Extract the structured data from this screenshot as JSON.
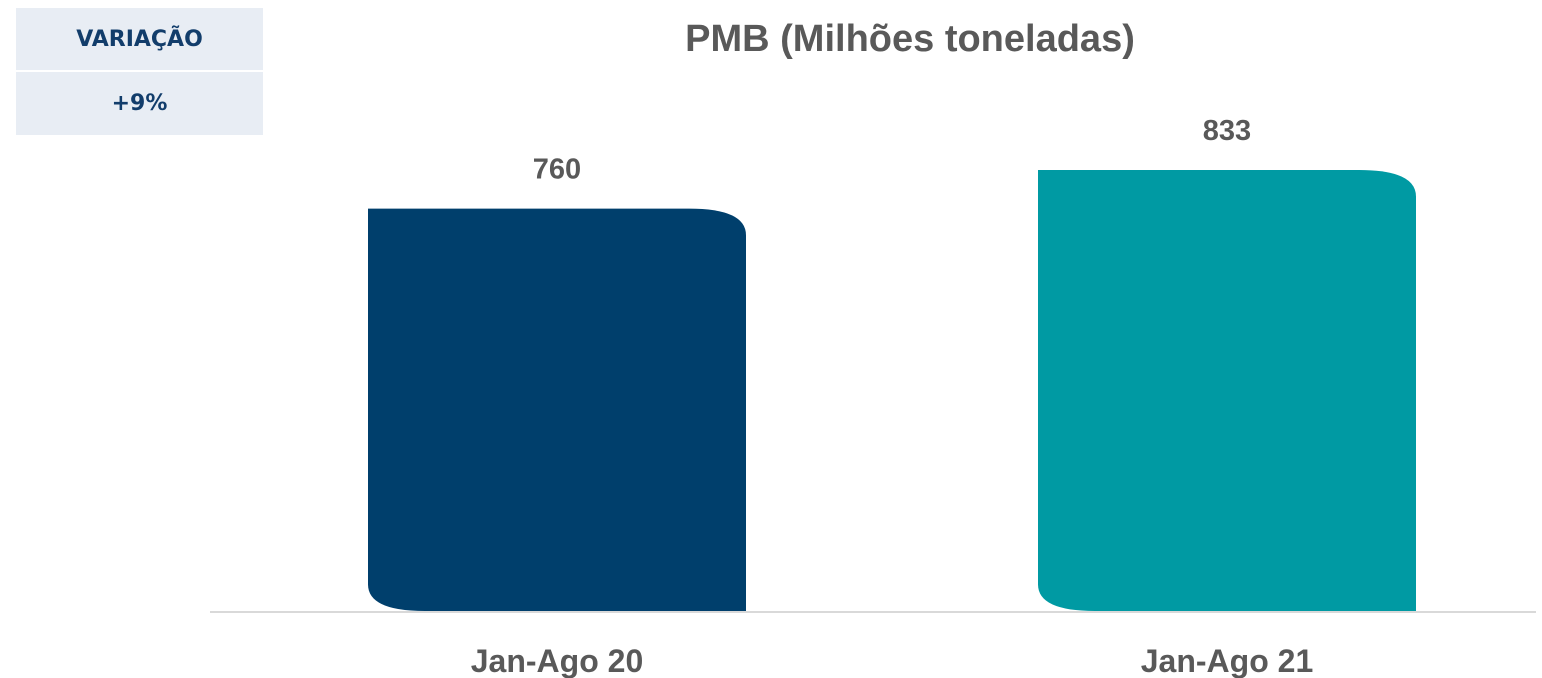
{
  "variation": {
    "label": "VARIAÇÃO",
    "value": "+9%",
    "text_color": "#123d6b",
    "background": "#e8edf4"
  },
  "chart_data": {
    "type": "bar",
    "title": "PMB (Milhões toneladas)",
    "categories": [
      "Jan-Ago 20",
      "Jan-Ago 21"
    ],
    "values": [
      760,
      833
    ],
    "data_labels": [
      "760",
      "833"
    ],
    "colors": [
      "#003f6c",
      "#009aa3"
    ],
    "xlabel": "",
    "ylabel": "",
    "ylim": [
      0,
      833
    ],
    "grid": false,
    "legend": "none"
  }
}
